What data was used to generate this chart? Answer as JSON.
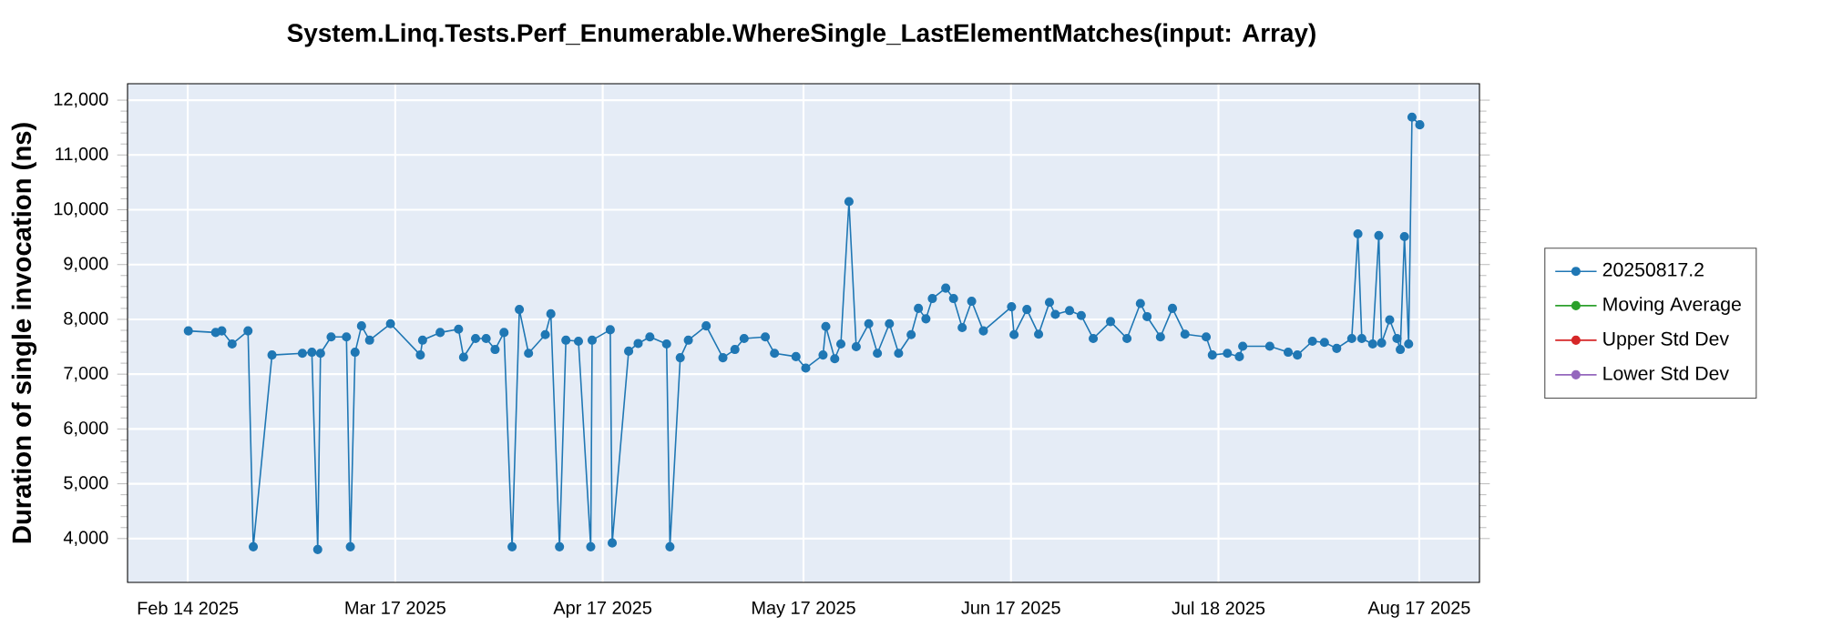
{
  "chart_data": {
    "type": "line",
    "title": "System.Linq.Tests.Perf_Enumerable.WhereSingle_LastElementMatches(input: Array)",
    "ylabel": "Duration of single invocation (ns)",
    "x": [
      "2025-02-14T02:00",
      "2025-02-18T04:00",
      "2025-02-19T02:00",
      "2025-02-20T15:00",
      "2025-02-23T00:00",
      "2025-02-23T19:00",
      "2025-02-26T14:00",
      "2025-03-03T03:00",
      "2025-03-04T13:00",
      "2025-03-05T10:00",
      "2025-03-05T20:00",
      "2025-03-07T10:00",
      "2025-03-09T17:00",
      "2025-03-10T07:00",
      "2025-03-11T00:00",
      "2025-03-11T23:00",
      "2025-03-13T04:00",
      "2025-03-16T07:00",
      "2025-03-20T18:00",
      "2025-03-21T02:00",
      "2025-03-23T17:00",
      "2025-03-26T11:00",
      "2025-03-27T05:00",
      "2025-03-29T00:00",
      "2025-03-30T14:00",
      "2025-03-31T22:00",
      "2025-04-02T06:00",
      "2025-04-03T11:00",
      "2025-04-04T13:00",
      "2025-04-05T22:00",
      "2025-04-08T10:00",
      "2025-04-09T06:00",
      "2025-04-10T13:00",
      "2025-04-11T12:00",
      "2025-04-13T09:00",
      "2025-04-15T05:00",
      "2025-04-15T10:00",
      "2025-04-18T03:00",
      "2025-04-18T10:00",
      "2025-04-20T21:00",
      "2025-04-22T07:00",
      "2025-04-24T01:00",
      "2025-04-26T13:00",
      "2025-04-27T01:00",
      "2025-04-28T14:00",
      "2025-04-29T19:00",
      "2025-05-02T11:00",
      "2025-05-04T23:00",
      "2025-05-06T18:00",
      "2025-05-08T03:00",
      "2025-05-11T07:00",
      "2025-05-12T16:00",
      "2025-05-15T21:00",
      "2025-05-17T08:00",
      "2025-05-19T22:00",
      "2025-05-20T08:00",
      "2025-05-21T16:00",
      "2025-05-22T14:00",
      "2025-05-23T19:00",
      "2025-05-24T21:00",
      "2025-05-26T18:00",
      "2025-05-28T01:00",
      "2025-05-29T20:00",
      "2025-05-31T05:00",
      "2025-06-02T02:00",
      "2025-06-03T04:00",
      "2025-06-04T07:00",
      "2025-06-05T06:00",
      "2025-06-07T06:00",
      "2025-06-08T10:00",
      "2025-06-09T17:00",
      "2025-06-11T03:00",
      "2025-06-12T21:00",
      "2025-06-17T02:00",
      "2025-06-17T11:00",
      "2025-06-19T09:00",
      "2025-06-21T03:00",
      "2025-06-22T18:00",
      "2025-06-23T15:00",
      "2025-06-25T18:00",
      "2025-06-27T12:00",
      "2025-06-29T07:00",
      "2025-07-01T21:00",
      "2025-07-04T08:00",
      "2025-07-06T08:00",
      "2025-07-07T08:00",
      "2025-07-09T08:00",
      "2025-07-11T03:00",
      "2025-07-13T00:00",
      "2025-07-16T04:00",
      "2025-07-17T02:00",
      "2025-07-19T08:00",
      "2025-07-21T03:00",
      "2025-07-21T15:00",
      "2025-07-25T16:00",
      "2025-07-28T10:00",
      "2025-07-29T19:00",
      "2025-08-01T01:00",
      "2025-08-02T20:00",
      "2025-08-04T16:00",
      "2025-08-06T22:00",
      "2025-08-07T20:00",
      "2025-08-08T10:00",
      "2025-08-10T01:00",
      "2025-08-10T23:00",
      "2025-08-11T09:00",
      "2025-08-12T14:00",
      "2025-08-13T16:00",
      "2025-08-14T04:00",
      "2025-08-14T19:00",
      "2025-08-15T10:00",
      "2025-08-15T22:00",
      "2025-08-17T02:00"
    ],
    "series": [
      {
        "name": "20250817.2",
        "color": "#1f77b4",
        "values": [
          7790,
          7760,
          7790,
          7550,
          7790,
          3850,
          7350,
          7380,
          7400,
          3800,
          7380,
          7680,
          7680,
          3850,
          7400,
          7880,
          7620,
          7920,
          7350,
          7620,
          7760,
          7820,
          7310,
          7650,
          7650,
          7450,
          7760,
          3850,
          8180,
          7380,
          7720,
          8100,
          3850,
          7620,
          7600,
          3850,
          7620,
          7810,
          3920,
          7420,
          7560,
          7680,
          7550,
          3850,
          7300,
          7620,
          7880,
          7300,
          7450,
          7650,
          7680,
          7380,
          7320,
          7110,
          7350,
          7870,
          7280,
          7550,
          10150,
          7500,
          7920,
          7380,
          7920,
          7380,
          7720,
          8200,
          8010,
          8380,
          8570,
          8380,
          7850,
          8330,
          7790,
          8230,
          7720,
          8180,
          7730,
          8310,
          8090,
          8160,
          8070,
          7650,
          7960,
          7650,
          8290,
          8050,
          7680,
          8200,
          7730,
          7680,
          7350,
          7380,
          7320,
          7510,
          7510,
          7400,
          7350,
          7600,
          7580,
          7470,
          7650,
          9560,
          7650,
          7550,
          9530,
          7570,
          7990,
          7650,
          7450,
          9510,
          7550,
          11690,
          11550
        ]
      },
      {
        "name": "Moving Average",
        "color": "#2ca02c",
        "values": [
          null,
          null,
          null,
          null,
          null,
          null,
          null,
          null,
          null,
          null,
          null,
          null,
          null,
          null,
          null,
          null,
          null,
          null,
          null,
          null,
          null,
          null,
          null,
          null,
          null,
          null,
          null,
          null,
          null,
          null,
          null,
          null,
          null,
          null,
          null,
          null,
          null,
          null,
          null,
          null,
          null,
          null,
          null,
          null,
          null,
          null,
          null,
          null,
          null,
          null,
          null,
          null,
          null,
          null,
          null,
          null,
          null,
          null,
          null,
          null,
          null,
          null,
          null,
          null,
          null,
          null,
          null,
          null,
          null,
          null,
          null,
          null,
          null,
          null,
          null,
          null,
          null,
          null,
          null,
          null,
          null,
          null,
          null,
          null,
          null,
          null,
          null,
          null,
          null,
          null,
          null,
          null,
          null,
          null,
          null,
          null,
          null,
          null,
          null,
          null,
          null,
          null,
          null,
          null,
          null,
          null,
          null,
          null,
          null,
          null,
          null,
          null,
          null
        ]
      },
      {
        "name": "Upper Std Dev",
        "color": "#d62728",
        "values": [
          null,
          null,
          null,
          null,
          null,
          null,
          null,
          null,
          null,
          null,
          null,
          null,
          null,
          null,
          null,
          null,
          null,
          null,
          null,
          null,
          null,
          null,
          null,
          null,
          null,
          null,
          null,
          null,
          null,
          null,
          null,
          null,
          null,
          null,
          null,
          null,
          null,
          null,
          null,
          null,
          null,
          null,
          null,
          null,
          null,
          null,
          null,
          null,
          null,
          null,
          null,
          null,
          null,
          null,
          null,
          null,
          null,
          null,
          null,
          null,
          null,
          null,
          null,
          null,
          null,
          null,
          null,
          null,
          null,
          null,
          null,
          null,
          null,
          null,
          null,
          null,
          null,
          null,
          null,
          null,
          null,
          null,
          null,
          null,
          null,
          null,
          null,
          null,
          null,
          null,
          null,
          null,
          null,
          null,
          null,
          null,
          null,
          null,
          null,
          null,
          null,
          null,
          null,
          null,
          null,
          null,
          null,
          null,
          null,
          null,
          null,
          null,
          null
        ]
      },
      {
        "name": "Lower Std Dev",
        "color": "#9467bd",
        "values": [
          null,
          null,
          null,
          null,
          null,
          null,
          null,
          null,
          null,
          null,
          null,
          null,
          null,
          null,
          null,
          null,
          null,
          null,
          null,
          null,
          null,
          null,
          null,
          null,
          null,
          null,
          null,
          null,
          null,
          null,
          null,
          null,
          null,
          null,
          null,
          null,
          null,
          null,
          null,
          null,
          null,
          null,
          null,
          null,
          null,
          null,
          null,
          null,
          null,
          null,
          null,
          null,
          null,
          null,
          null,
          null,
          null,
          null,
          null,
          null,
          null,
          null,
          null,
          null,
          null,
          null,
          null,
          null,
          null,
          null,
          null,
          null,
          null,
          null,
          null,
          null,
          null,
          null,
          null,
          null,
          null,
          null,
          null,
          null,
          null,
          null,
          null,
          null,
          null,
          null,
          null,
          null,
          null,
          null,
          null,
          null,
          null,
          null,
          null,
          null,
          null,
          null,
          null,
          null,
          null,
          null,
          null,
          null,
          null,
          null,
          null,
          null,
          null
        ]
      }
    ],
    "xlim": [
      "2025-02-05",
      "2025-08-26"
    ],
    "xticks": [
      {
        "value": "2025-02-14",
        "label": "Feb 14 2025"
      },
      {
        "value": "2025-03-17",
        "label": "Mar 17 2025"
      },
      {
        "value": "2025-04-17",
        "label": "Apr 17 2025"
      },
      {
        "value": "2025-05-17",
        "label": "May 17 2025"
      },
      {
        "value": "2025-06-17",
        "label": "Jun 17 2025"
      },
      {
        "value": "2025-07-18",
        "label": "Jul 18 2025"
      },
      {
        "value": "2025-08-17",
        "label": "Aug 17 2025"
      }
    ],
    "ylim": [
      3200,
      12300
    ],
    "yticks": [
      {
        "value": 4000,
        "label": "4,000"
      },
      {
        "value": 5000,
        "label": "5,000"
      },
      {
        "value": 6000,
        "label": "6,000"
      },
      {
        "value": 7000,
        "label": "7,000"
      },
      {
        "value": 8000,
        "label": "8,000"
      },
      {
        "value": 9000,
        "label": "9,000"
      },
      {
        "value": 10000,
        "label": "10,000"
      },
      {
        "value": 11000,
        "label": "11,000"
      },
      {
        "value": 12000,
        "label": "12,000"
      }
    ],
    "grid": true,
    "legend": "right",
    "marker": "circle",
    "line_style": "solid"
  }
}
